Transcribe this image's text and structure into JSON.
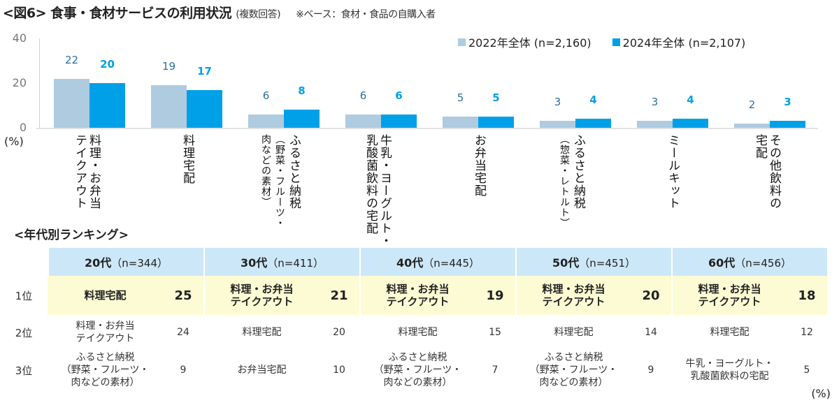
{
  "header": {
    "title": "<図6> 食事・食材サービスの利用状況",
    "subtitle": "(複数回答)",
    "base_note": "※ベース：食材・食品の自購入者"
  },
  "legend": [
    {
      "label": "2022年全体 (n=2,160)",
      "color": "#aecbdf"
    },
    {
      "label": "2024年全体 (n=2,107)",
      "color": "#00a0e9"
    }
  ],
  "axis": {
    "ticks": [
      "40",
      "20",
      "0"
    ],
    "unit": "(%)"
  },
  "chart_data": {
    "type": "bar",
    "title": "食事・食材サービスの利用状況（複数回答）",
    "xlabel": "",
    "ylabel": "(%)",
    "ylim": [
      0,
      40
    ],
    "yticks": [
      0,
      20,
      40
    ],
    "grid": false,
    "legend_position": "top-right",
    "categories": [
      "料理・お弁当テイクアウト",
      "料理宅配",
      "ふるさと納税（野菜・フルーツ・肉などの素材）",
      "牛乳・ヨーグルト・乳酸菌飲料の宅配",
      "お弁当宅配",
      "ふるさと納税（惣菜・レトルト）",
      "ミールキット",
      "その他飲料の宅配"
    ],
    "series": [
      {
        "name": "2022年全体 (n=2,160)",
        "values": [
          22,
          19,
          6,
          6,
          5,
          3,
          3,
          2
        ]
      },
      {
        "name": "2024年全体 (n=2,107)",
        "values": [
          20,
          17,
          8,
          6,
          5,
          4,
          4,
          3
        ]
      }
    ]
  },
  "bars": {
    "a_labels": [
      "22",
      "19",
      "6",
      "6",
      "5",
      "3",
      "3",
      "2"
    ],
    "b_labels": [
      "20",
      "17",
      "8",
      "6",
      "5",
      "4",
      "4",
      "3"
    ]
  },
  "categories_display": [
    {
      "line1": "料理・お弁当",
      "line2": "テイクアウト"
    },
    {
      "line1": "料理宅配",
      "line2": ""
    },
    {
      "line1": "ふるさと納税",
      "line2": "（野菜・フルーツ・",
      "line3": "肉などの素材）"
    },
    {
      "line1": "牛乳・ヨーグルト・",
      "line2": "乳酸菌飲料の宅配"
    },
    {
      "line1": "お弁当宅配",
      "line2": ""
    },
    {
      "line1": "ふるさと納税",
      "line2": "（惣菜・レトルト）"
    },
    {
      "line1": "ミールキット",
      "line2": ""
    },
    {
      "line1": "その他飲料の",
      "line2": "宅配"
    }
  ],
  "ranking": {
    "title": "<年代別ランキング>",
    "unit": "(%)",
    "columns": [
      {
        "age": "20代",
        "n": "（n=344）"
      },
      {
        "age": "30代",
        "n": "（n=411）"
      },
      {
        "age": "40代",
        "n": "（n=445）"
      },
      {
        "age": "50代",
        "n": "（n=451）"
      },
      {
        "age": "60代",
        "n": "（n=456）"
      }
    ],
    "rows": [
      {
        "rank": "1位",
        "cells": [
          {
            "name1": "料理宅配",
            "name2": "",
            "name3": "",
            "value": "25"
          },
          {
            "name1": "料理・お弁当",
            "name2": "テイクアウト",
            "name3": "",
            "value": "21"
          },
          {
            "name1": "料理・お弁当",
            "name2": "テイクアウト",
            "name3": "",
            "value": "19"
          },
          {
            "name1": "料理・お弁当",
            "name2": "テイクアウト",
            "name3": "",
            "value": "20"
          },
          {
            "name1": "料理・お弁当",
            "name2": "テイクアウト",
            "name3": "",
            "value": "18"
          }
        ]
      },
      {
        "rank": "2位",
        "cells": [
          {
            "name1": "料理・お弁当",
            "name2": "テイクアウト",
            "name3": "",
            "value": "24"
          },
          {
            "name1": "料理宅配",
            "name2": "",
            "name3": "",
            "value": "20"
          },
          {
            "name1": "料理宅配",
            "name2": "",
            "name3": "",
            "value": "15"
          },
          {
            "name1": "料理宅配",
            "name2": "",
            "name3": "",
            "value": "14"
          },
          {
            "name1": "料理宅配",
            "name2": "",
            "name3": "",
            "value": "12"
          }
        ]
      },
      {
        "rank": "3位",
        "cells": [
          {
            "name1": "ふるさと納税",
            "name2": "（野菜・フルーツ・",
            "name3": "肉などの素材）",
            "value": "9"
          },
          {
            "name1": "お弁当宅配",
            "name2": "",
            "name3": "",
            "value": "10"
          },
          {
            "name1": "ふるさと納税",
            "name2": "（野菜・フルーツ・",
            "name3": "肉などの素材）",
            "value": "7"
          },
          {
            "name1": "ふるさと納税",
            "name2": "（野菜・フルーツ・",
            "name3": "肉などの素材）",
            "value": "9"
          },
          {
            "name1": "牛乳・ヨーグルト・",
            "name2": "乳酸菌飲料の宅配",
            "name3": "",
            "value": "5"
          }
        ]
      }
    ]
  }
}
